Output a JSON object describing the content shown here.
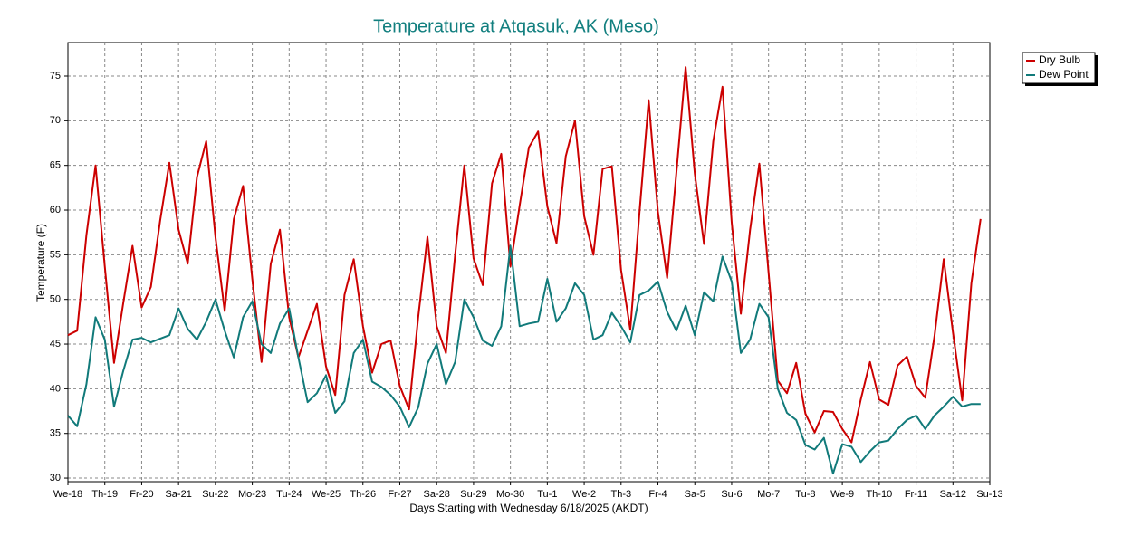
{
  "chart_data": {
    "type": "line",
    "title": "Temperature at Atqasuk, AK (Meso)",
    "x_label": "Days Starting with Wednesday 6/18/2025 (AKDT)",
    "y_label": "Temperature (F)",
    "x": [
      0,
      0.25,
      0.5,
      0.75,
      1,
      1.25,
      1.5,
      1.75,
      2,
      2.25,
      2.5,
      2.75,
      3,
      3.25,
      3.5,
      3.75,
      4,
      4.25,
      4.5,
      4.75,
      5,
      5.25,
      5.5,
      5.75,
      6,
      6.25,
      6.5,
      6.75,
      7,
      7.25,
      7.5,
      7.75,
      8,
      8.25,
      8.5,
      8.75,
      9,
      9.25,
      9.5,
      9.75,
      10,
      10.25,
      10.5,
      10.75,
      11,
      11.25,
      11.5,
      11.75,
      12,
      12.25,
      12.5,
      12.75,
      13,
      13.25,
      13.5,
      13.75,
      14,
      14.25,
      14.5,
      14.75,
      15,
      15.25,
      15.5,
      15.75,
      16,
      16.25,
      16.5,
      16.75,
      17,
      17.25,
      17.5,
      17.75,
      18,
      18.25,
      18.5,
      18.75,
      19,
      19.25,
      19.5,
      19.75,
      20,
      20.25,
      20.5,
      20.75,
      21,
      21.25,
      21.5,
      21.75,
      22,
      22.25,
      22.5,
      22.75,
      23,
      23.25,
      23.5,
      23.75,
      24,
      24.25,
      24.5,
      24.75
    ],
    "series": [
      {
        "name": "Dry Bulb",
        "color": "#cc0000",
        "values": [
          46,
          46.5,
          57.2,
          65,
          53.7,
          42.9,
          49.6,
          56,
          49.1,
          51.4,
          58.8,
          65.3,
          57.8,
          54,
          63.7,
          67.7,
          57,
          48.7,
          59,
          62.7,
          52.3,
          43,
          54,
          57.8,
          48,
          43.5,
          46.5,
          49.5,
          42.5,
          39.3,
          50.5,
          54.5,
          47,
          41.8,
          45,
          45.4,
          40.3,
          37.7,
          48,
          57,
          47,
          44,
          55,
          65,
          54.6,
          51.6,
          63,
          66.3,
          53.7,
          60.5,
          67,
          68.8,
          60.4,
          56.3,
          66,
          70,
          59.3,
          55,
          64.6,
          64.9,
          53.3,
          46.6,
          59.8,
          72.3,
          59.8,
          52.4,
          64.2,
          76,
          64.1,
          56.2,
          67.7,
          73.8,
          58.6,
          48.4,
          57.8,
          65.2,
          53,
          40.9,
          39.5,
          42.9,
          37.2,
          35.1,
          37.5,
          37.4,
          35.5,
          34,
          38.8,
          43,
          38.8,
          38.2,
          42.6,
          43.6,
          40.3,
          39,
          45.9,
          54.5,
          46.3,
          38.7,
          51.8,
          59
        ]
      },
      {
        "name": "Dew Point",
        "color": "#117a7a",
        "values": [
          37,
          35.8,
          40.5,
          48,
          45.5,
          38,
          42,
          45.5,
          45.7,
          45.2,
          45.6,
          46,
          49,
          46.7,
          45.5,
          47.5,
          50,
          46.5,
          43.5,
          48,
          49.8,
          45,
          44,
          47.3,
          49,
          43.5,
          38.5,
          39.5,
          41.5,
          37.3,
          38.6,
          44,
          45.5,
          40.8,
          40.2,
          39.3,
          38,
          35.7,
          37.9,
          42.8,
          45,
          40.5,
          43,
          50,
          48,
          45.4,
          44.8,
          47,
          56,
          47,
          47.3,
          47.5,
          52.3,
          47.5,
          49,
          51.8,
          50.5,
          45.5,
          46,
          48.5,
          47,
          45.2,
          50.5,
          51,
          52,
          48.6,
          46.5,
          49.3,
          46,
          50.8,
          49.8,
          54.8,
          52,
          44,
          45.5,
          49.5,
          48,
          40,
          37.3,
          36.5,
          33.7,
          33.2,
          34.5,
          30.5,
          33.8,
          33.5,
          31.8,
          33,
          34,
          34.2,
          35.5,
          36.5,
          37,
          35.5,
          37,
          38,
          39.1,
          38,
          38.3,
          38.3
        ]
      }
    ],
    "xlim": [
      0,
      25
    ],
    "xticks": [
      {
        "value": 0,
        "label": "We-18"
      },
      {
        "value": 1,
        "label": "Th-19"
      },
      {
        "value": 2,
        "label": "Fr-20"
      },
      {
        "value": 3,
        "label": "Sa-21"
      },
      {
        "value": 4,
        "label": "Su-22"
      },
      {
        "value": 5,
        "label": "Mo-23"
      },
      {
        "value": 6,
        "label": "Tu-24"
      },
      {
        "value": 7,
        "label": "We-25"
      },
      {
        "value": 8,
        "label": "Th-26"
      },
      {
        "value": 9,
        "label": "Fr-27"
      },
      {
        "value": 10,
        "label": "Sa-28"
      },
      {
        "value": 11,
        "label": "Su-29"
      },
      {
        "value": 12,
        "label": "Mo-30"
      },
      {
        "value": 13,
        "label": "Tu-1"
      },
      {
        "value": 14,
        "label": "We-2"
      },
      {
        "value": 15,
        "label": "Th-3"
      },
      {
        "value": 16,
        "label": "Fr-4"
      },
      {
        "value": 17,
        "label": "Sa-5"
      },
      {
        "value": 18,
        "label": "Su-6"
      },
      {
        "value": 19,
        "label": "Mo-7"
      },
      {
        "value": 20,
        "label": "Tu-8"
      },
      {
        "value": 21,
        "label": "We-9"
      },
      {
        "value": 22,
        "label": "Th-10"
      },
      {
        "value": 23,
        "label": "Fr-11"
      },
      {
        "value": 24,
        "label": "Sa-12"
      },
      {
        "value": 25,
        "label": "Su-13"
      }
    ],
    "ylim": [
      29.6,
      78.75
    ],
    "yticks": [
      30,
      35,
      40,
      45,
      50,
      55,
      60,
      65,
      70,
      75
    ],
    "grid": true,
    "legend": "top-right"
  }
}
